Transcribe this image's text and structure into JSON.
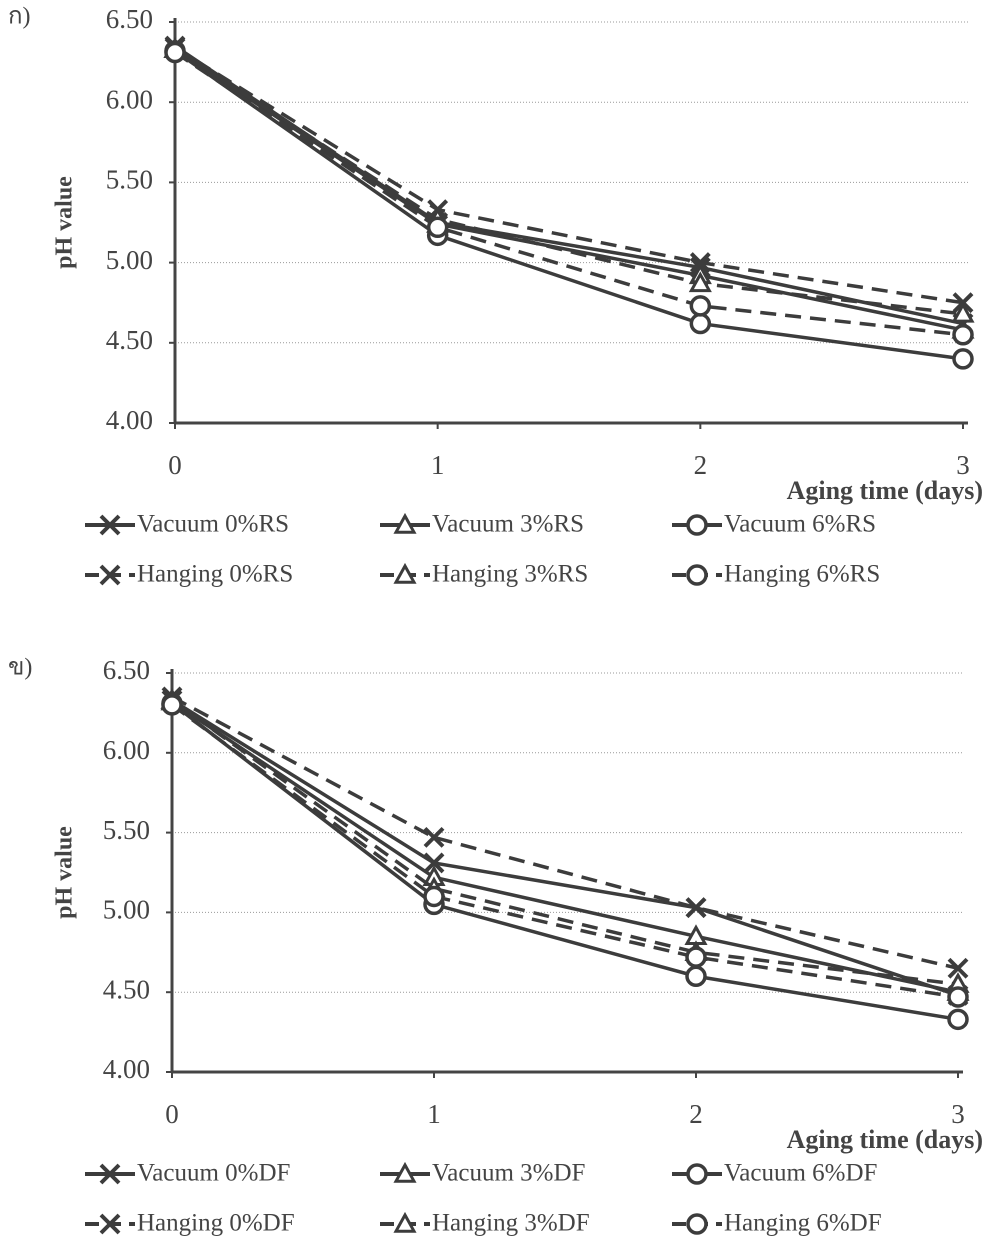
{
  "chart_data": [
    {
      "type": "line",
      "panel_label": "ก)",
      "y_label": "pH  value",
      "x_label": "Aging time (days)",
      "x": [
        0,
        1,
        2,
        3
      ],
      "xlim": [
        0,
        3
      ],
      "xticks": [
        0,
        1,
        2,
        3
      ],
      "ylim": [
        4,
        6.5
      ],
      "yticks": [
        {
          "value": 4,
          "label": "4.00"
        },
        {
          "value": 4.5,
          "label": "4.50"
        },
        {
          "value": 5,
          "label": "5.00"
        },
        {
          "value": 5.5,
          "label": "5.50"
        },
        {
          "value": 6,
          "label": "6.00"
        },
        {
          "value": 6.5,
          "label": "6.50"
        }
      ],
      "grid": true,
      "series": [
        {
          "name": "Vacuum 0%RS",
          "color": "#3c3c3c",
          "marker": "x",
          "dashed": false,
          "values": [
            6.35,
            5.25,
            4.97,
            4.62
          ]
        },
        {
          "name": "Vacuum 3%RS",
          "color": "#3c3c3c",
          "marker": "triangle",
          "dashed": false,
          "values": [
            6.33,
            5.24,
            4.92,
            4.58
          ]
        },
        {
          "name": "Vacuum 6%RS",
          "color": "#3c3c3c",
          "marker": "circle",
          "dashed": false,
          "values": [
            6.32,
            5.17,
            4.62,
            4.4
          ]
        },
        {
          "name": "Hanging 0%RS",
          "color": "#3c3c3c",
          "marker": "x",
          "dashed": true,
          "values": [
            6.34,
            5.33,
            5.0,
            4.75
          ]
        },
        {
          "name": "Hanging 3%RS",
          "color": "#3c3c3c",
          "marker": "triangle",
          "dashed": true,
          "values": [
            6.33,
            5.27,
            4.87,
            4.68
          ]
        },
        {
          "name": "Hanging 6%RS",
          "color": "#3c3c3c",
          "marker": "circle",
          "dashed": true,
          "values": [
            6.31,
            5.22,
            4.73,
            4.55
          ]
        }
      ]
    },
    {
      "type": "line",
      "panel_label": "ข)",
      "y_label": "pH  value",
      "x_label": "Aging time (days)",
      "x": [
        0,
        1,
        2,
        3
      ],
      "xlim": [
        0,
        3
      ],
      "xticks": [
        0,
        1,
        2,
        3
      ],
      "ylim": [
        4,
        6.5
      ],
      "yticks": [
        {
          "value": 4,
          "label": "4.00"
        },
        {
          "value": 4.5,
          "label": "4.50"
        },
        {
          "value": 5,
          "label": "5.00"
        },
        {
          "value": 5.5,
          "label": "5.50"
        },
        {
          "value": 6,
          "label": "6.00"
        },
        {
          "value": 6.5,
          "label": "6.50"
        }
      ],
      "grid": true,
      "series": [
        {
          "name": "Vacuum 0%DF",
          "color": "#3c3c3c",
          "marker": "x",
          "dashed": false,
          "values": [
            6.33,
            5.31,
            5.03,
            4.48
          ]
        },
        {
          "name": "Vacuum 3%DF",
          "color": "#3c3c3c",
          "marker": "triangle",
          "dashed": false,
          "values": [
            6.32,
            5.22,
            4.85,
            4.5
          ]
        },
        {
          "name": "Vacuum 6%DF",
          "color": "#3c3c3c",
          "marker": "circle",
          "dashed": false,
          "values": [
            6.31,
            5.05,
            4.6,
            4.33
          ]
        },
        {
          "name": "Hanging 0%DF",
          "color": "#3c3c3c",
          "marker": "x",
          "dashed": true,
          "values": [
            6.35,
            5.47,
            5.03,
            4.65
          ]
        },
        {
          "name": "Hanging 3%DF",
          "color": "#3c3c3c",
          "marker": "triangle",
          "dashed": true,
          "values": [
            6.33,
            5.15,
            4.75,
            4.55
          ]
        },
        {
          "name": "Hanging 6%DF",
          "color": "#3c3c3c",
          "marker": "circle",
          "dashed": true,
          "values": [
            6.3,
            5.1,
            4.72,
            4.47
          ]
        }
      ]
    }
  ]
}
